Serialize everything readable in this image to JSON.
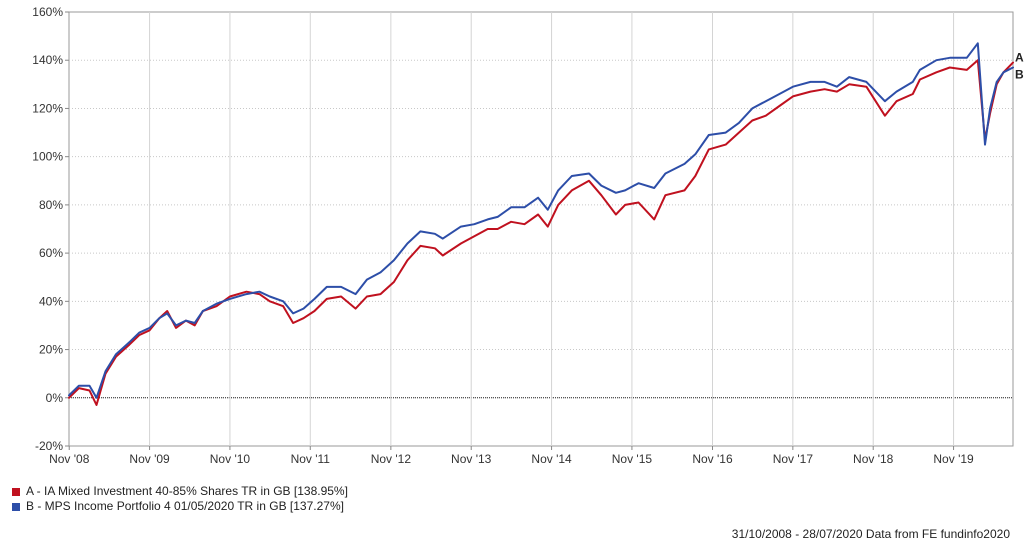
{
  "chart_data": {
    "type": "line",
    "title": "",
    "xlabel": "",
    "ylabel": "",
    "ylim": [
      -20,
      160
    ],
    "y_ticks": [
      "160%",
      "140%",
      "120%",
      "100%",
      "80%",
      "60%",
      "40%",
      "20%",
      "0%",
      "-20%"
    ],
    "y_tick_values": [
      160,
      140,
      120,
      100,
      80,
      60,
      40,
      20,
      0,
      -20
    ],
    "x_range": [
      "2008-10-31",
      "2020-07-28"
    ],
    "x_ticks": [
      "Nov '08",
      "Nov '09",
      "Nov '10",
      "Nov '11",
      "Nov '12",
      "Nov '13",
      "Nov '14",
      "Nov '15",
      "Nov '16",
      "Nov '17",
      "Nov '18",
      "Nov '19"
    ],
    "x_tick_dates": [
      "2008-11-01",
      "2009-11-01",
      "2010-11-01",
      "2011-11-01",
      "2012-11-01",
      "2013-11-01",
      "2014-11-01",
      "2015-11-01",
      "2016-11-01",
      "2017-11-01",
      "2018-11-01",
      "2019-11-01"
    ],
    "grid": true,
    "zero_line": true,
    "legend_position": "bottom-left",
    "series": [
      {
        "name": "A - IA Mixed Investment 40-85% Shares TR in GB [138.95%]",
        "end_label": "A",
        "color": "#c0111f",
        "x": [
          "2008-10-31",
          "2008-12-15",
          "2009-02-01",
          "2009-03-05",
          "2009-04-15",
          "2009-06-01",
          "2009-08-01",
          "2009-09-15",
          "2009-11-01",
          "2009-12-15",
          "2010-01-20",
          "2010-03-01",
          "2010-04-15",
          "2010-05-25",
          "2010-07-01",
          "2010-09-01",
          "2010-11-01",
          "2011-01-15",
          "2011-03-15",
          "2011-05-01",
          "2011-07-01",
          "2011-08-15",
          "2011-10-01",
          "2011-11-20",
          "2012-01-15",
          "2012-03-20",
          "2012-05-25",
          "2012-07-15",
          "2012-09-15",
          "2012-11-15",
          "2013-01-15",
          "2013-03-15",
          "2013-05-20",
          "2013-06-25",
          "2013-09-15",
          "2013-11-15",
          "2014-01-15",
          "2014-03-01",
          "2014-05-01",
          "2014-07-01",
          "2014-09-01",
          "2014-10-15",
          "2014-12-01",
          "2015-02-01",
          "2015-04-20",
          "2015-06-15",
          "2015-08-20",
          "2015-10-01",
          "2015-12-01",
          "2016-02-10",
          "2016-04-01",
          "2016-06-27",
          "2016-08-15",
          "2016-10-15",
          "2016-12-31",
          "2017-03-01",
          "2017-05-01",
          "2017-07-01",
          "2017-09-01",
          "2017-11-01",
          "2018-01-20",
          "2018-03-25",
          "2018-05-20",
          "2018-07-15",
          "2018-10-01",
          "2018-12-24",
          "2019-02-15",
          "2019-04-30",
          "2019-06-01",
          "2019-08-15",
          "2019-10-15",
          "2019-12-31",
          "2020-02-19",
          "2020-03-23",
          "2020-04-15",
          "2020-05-15",
          "2020-06-15",
          "2020-07-28"
        ],
        "y": [
          0,
          4,
          3,
          -3,
          10,
          17,
          22,
          26,
          28,
          33,
          36,
          29,
          32,
          30,
          36,
          38,
          42,
          44,
          43,
          40,
          38,
          31,
          33,
          36,
          41,
          42,
          37,
          42,
          43,
          48,
          57,
          63,
          62,
          59,
          64,
          67,
          70,
          70,
          73,
          72,
          76,
          71,
          80,
          86,
          90,
          84,
          76,
          80,
          81,
          74,
          84,
          86,
          92,
          103,
          105,
          110,
          115,
          117,
          121,
          125,
          127,
          128,
          127,
          130,
          129,
          117,
          123,
          126,
          132,
          135,
          137,
          136,
          140,
          107,
          118,
          130,
          135,
          139
        ]
      },
      {
        "name": "B - MPS Income Portfolio 4 01/05/2020 TR in GB [137.27%]",
        "end_label": "B",
        "color": "#2d4ea8",
        "x": [
          "2008-10-31",
          "2008-12-15",
          "2009-02-01",
          "2009-03-05",
          "2009-04-15",
          "2009-06-01",
          "2009-08-01",
          "2009-09-15",
          "2009-11-01",
          "2009-12-15",
          "2010-01-20",
          "2010-03-01",
          "2010-04-15",
          "2010-05-25",
          "2010-07-01",
          "2010-09-01",
          "2010-11-01",
          "2011-01-15",
          "2011-03-15",
          "2011-05-01",
          "2011-07-01",
          "2011-08-15",
          "2011-10-01",
          "2011-11-20",
          "2012-01-15",
          "2012-03-20",
          "2012-05-25",
          "2012-07-15",
          "2012-09-15",
          "2012-11-15",
          "2013-01-15",
          "2013-03-15",
          "2013-05-20",
          "2013-06-25",
          "2013-09-15",
          "2013-11-15",
          "2014-01-15",
          "2014-03-01",
          "2014-05-01",
          "2014-07-01",
          "2014-09-01",
          "2014-10-15",
          "2014-12-01",
          "2015-02-01",
          "2015-04-20",
          "2015-06-15",
          "2015-08-20",
          "2015-10-01",
          "2015-12-01",
          "2016-02-10",
          "2016-04-01",
          "2016-06-27",
          "2016-08-15",
          "2016-10-15",
          "2016-12-31",
          "2017-03-01",
          "2017-05-01",
          "2017-07-01",
          "2017-09-01",
          "2017-11-01",
          "2018-01-20",
          "2018-03-25",
          "2018-05-20",
          "2018-07-15",
          "2018-10-01",
          "2018-12-24",
          "2019-02-15",
          "2019-04-30",
          "2019-06-01",
          "2019-08-15",
          "2019-10-15",
          "2019-12-31",
          "2020-02-19",
          "2020-03-23",
          "2020-04-15",
          "2020-05-15",
          "2020-06-15",
          "2020-07-28"
        ],
        "y": [
          1,
          5,
          5,
          0,
          11,
          18,
          23,
          27,
          29,
          33,
          35,
          30,
          32,
          31,
          36,
          39,
          41,
          43,
          44,
          42,
          40,
          35,
          37,
          41,
          46,
          46,
          43,
          49,
          52,
          57,
          64,
          69,
          68,
          66,
          71,
          72,
          74,
          75,
          79,
          79,
          83,
          78,
          86,
          92,
          93,
          88,
          85,
          86,
          89,
          87,
          93,
          97,
          101,
          109,
          110,
          114,
          120,
          123,
          126,
          129,
          131,
          131,
          129,
          133,
          131,
          123,
          127,
          131,
          136,
          140,
          141,
          141,
          147,
          105,
          120,
          131,
          135,
          137
        ]
      }
    ]
  },
  "legend": [
    {
      "label": "A - IA Mixed Investment 40-85% Shares TR in GB [138.95%]",
      "color": "#c0111f"
    },
    {
      "label": "B - MPS Income Portfolio 4 01/05/2020 TR in GB [137.27%]",
      "color": "#2d4ea8"
    }
  ],
  "footer": "31/10/2008 - 28/07/2020 Data from FE fundinfo2020"
}
